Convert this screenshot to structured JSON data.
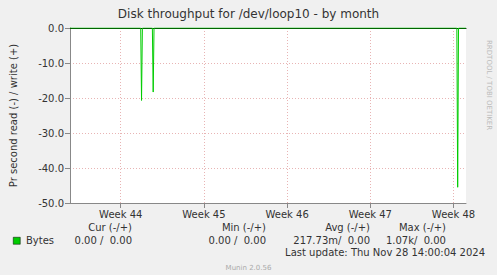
{
  "chart_data": {
    "type": "line",
    "title": "Disk throughput for /dev/loop10 - by month",
    "ylabel": "Pr second read (-) / write (+)",
    "x": [
      43.39,
      44.24,
      44.25,
      44.26,
      44.38,
      44.39,
      44.4,
      48.04,
      48.05,
      48.06,
      48.15
    ],
    "series": [
      {
        "name": "Bytes",
        "color": "#00cc00",
        "values": [
          0,
          0,
          -20.7,
          0,
          0,
          -18.3,
          0,
          0,
          -45.5,
          0,
          0
        ]
      }
    ],
    "xlim": [
      43.39,
      48.15
    ],
    "xticks": [
      {
        "value": 44,
        "label": "Week 44"
      },
      {
        "value": 45,
        "label": "Week 45"
      },
      {
        "value": 46,
        "label": "Week 46"
      },
      {
        "value": 47,
        "label": "Week 47"
      },
      {
        "value": 48,
        "label": "Week 48"
      }
    ],
    "ylim": [
      -50,
      0
    ],
    "yticks": [
      {
        "value": 0,
        "label": "0.0"
      },
      {
        "value": -10,
        "label": "-10.0"
      },
      {
        "value": -20,
        "label": "-20.0"
      },
      {
        "value": -30,
        "label": "-30.0"
      },
      {
        "value": -40,
        "label": "-40.0"
      },
      {
        "value": -50,
        "label": "-50.0"
      }
    ],
    "grid": true,
    "legend_table": {
      "header": [
        "Cur (-/+)",
        "Min (-/+)",
        "Avg (-/+)",
        "Max (-/+)"
      ],
      "rows": [
        [
          "0.00 /  0.00",
          "0.00 /  0.00",
          "217.73m/  0.00",
          "1.07k/  0.00"
        ]
      ]
    },
    "footer": "Last update: Thu Nov 28 14:00:04 2024",
    "credit": "Munin 2.0.56",
    "side_text": "RRDTOOL / TOBI OETIKER"
  }
}
